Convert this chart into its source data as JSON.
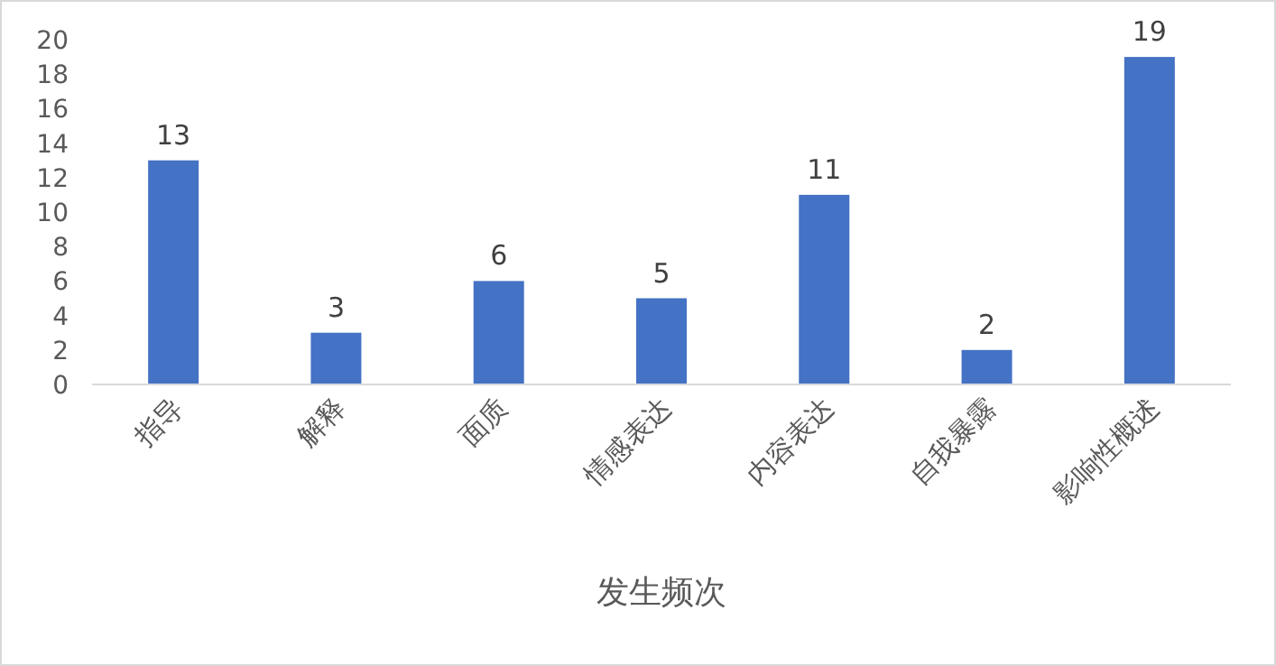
{
  "chart_data": {
    "type": "bar",
    "categories": [
      "指导",
      "解释",
      "面质",
      "情感表达",
      "内容表达",
      "自我暴露",
      "影响性概述"
    ],
    "values": [
      13,
      3,
      6,
      5,
      11,
      2,
      19
    ],
    "color": "#4472c4",
    "xlabel": "发生频次",
    "ylim": [
      0,
      20
    ],
    "yticks": [
      0,
      2,
      4,
      6,
      8,
      10,
      12,
      14,
      16,
      18,
      20
    ],
    "data_labels": true,
    "grid": false,
    "legend": false
  }
}
